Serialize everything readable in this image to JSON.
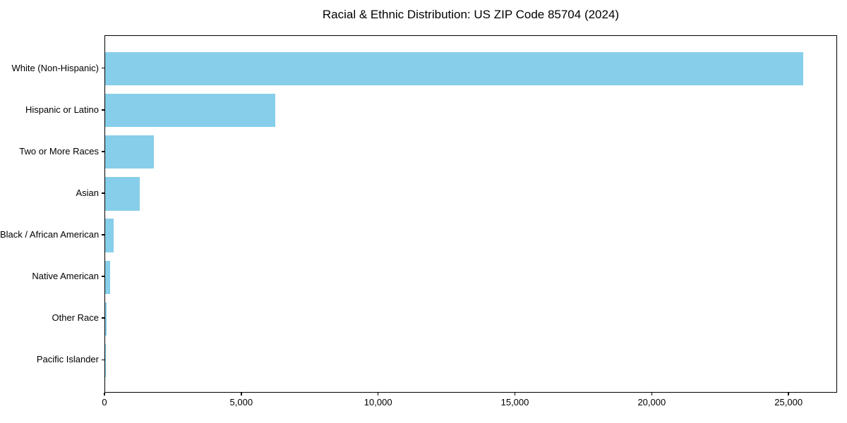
{
  "chart_data": {
    "type": "bar",
    "orientation": "horizontal",
    "title": "Racial & Ethnic Distribution: US ZIP Code 85704 (2024)",
    "categories": [
      "White (Non-Hispanic)",
      "Hispanic or Latino",
      "Two or More Races",
      "Asian",
      "Black / African American",
      "Native American",
      "Other Race",
      "Pacific Islander"
    ],
    "values": [
      25500,
      6210,
      1775,
      1255,
      310,
      175,
      40,
      10
    ],
    "xlabel": "",
    "ylabel": "",
    "xlim": [
      0,
      26775
    ],
    "x_ticks": [
      0,
      5000,
      10000,
      15000,
      20000,
      25000
    ],
    "x_tick_labels": [
      "0",
      "5,000",
      "10,000",
      "15,000",
      "20,000",
      "25,000"
    ],
    "bar_color": "#87CEEB",
    "axis_color": "#000000",
    "grid": false,
    "legend": null
  }
}
